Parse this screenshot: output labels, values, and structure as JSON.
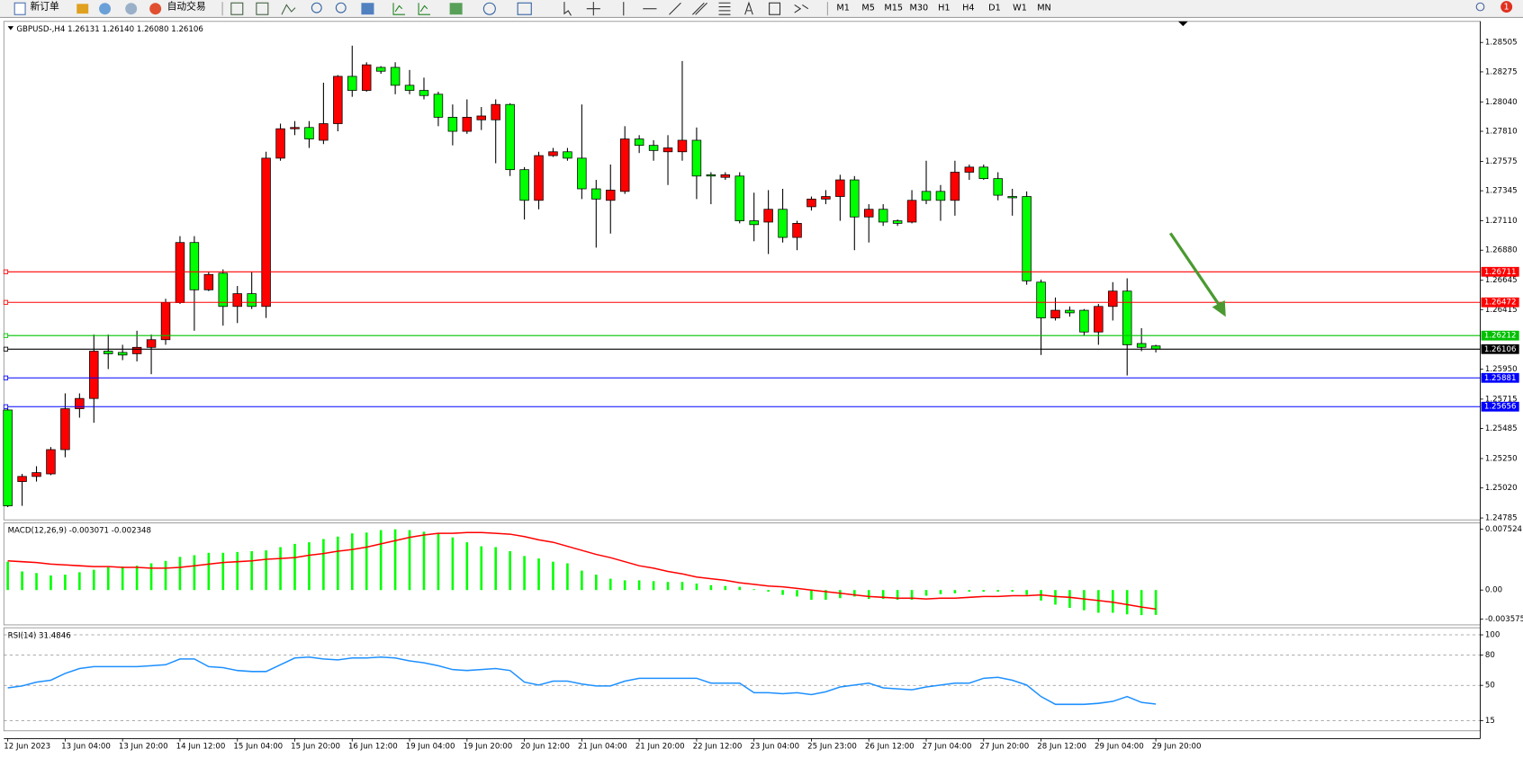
{
  "toolbar": {
    "buttons": [
      "新订单",
      "自动交易"
    ],
    "timeframes": [
      "M1",
      "M5",
      "M15",
      "M30",
      "H1",
      "H4",
      "D1",
      "W1",
      "MN"
    ],
    "badge": "1"
  },
  "chart_data": [
    {
      "type": "candlestick",
      "title": "GBPUSD-,H4  1.26131 1.26140 1.26080 1.26106",
      "up_color": "#ff0000",
      "down_color": "#00ff00",
      "categories": [
        "12 Jun 2023",
        null,
        null,
        null,
        "13 Jun 04:00",
        null,
        null,
        null,
        "13 Jun 20:00",
        null,
        null,
        null,
        "14 Jun 12:00",
        null,
        null,
        null,
        "15 Jun 04:00",
        null,
        null,
        null,
        "15 Jun 20:00",
        null,
        null,
        null,
        "16 Jun 12:00",
        null,
        null,
        null,
        "19 Jun 04:00",
        null,
        null,
        null,
        "19 Jun 20:00",
        null,
        null,
        null,
        "20 Jun 12:00",
        null,
        null,
        null,
        "21 Jun 04:00",
        null,
        null,
        null,
        "21 Jun 20:00",
        null,
        null,
        null,
        "22 Jun 12:00",
        null,
        null,
        null,
        "23 Jun 04:00",
        null,
        null,
        null,
        "25 Jun 23:00",
        null,
        null,
        null,
        "26 Jun 12:00",
        null,
        null,
        null,
        "27 Jun 04:00",
        null,
        null,
        null,
        "27 Jun 20:00",
        null,
        null,
        null,
        "28 Jun 12:00",
        null,
        null,
        null,
        "29 Jun 04:00",
        null,
        null,
        null,
        "29 Jun 20:00"
      ],
      "open": [
        1.2563,
        1.2507,
        1.2511,
        1.2513,
        1.2532,
        1.2564,
        1.2572,
        1.2609,
        1.2608,
        1.2607,
        1.2612,
        1.2618,
        1.2647,
        1.2694,
        1.2657,
        1.267,
        1.2644,
        1.2654,
        1.2644,
        1.276,
        1.2783,
        1.2784,
        1.2774,
        1.2787,
        1.2824,
        1.2813,
        1.2831,
        1.2831,
        1.2817,
        1.2813,
        1.281,
        1.2792,
        1.2781,
        1.279,
        1.279,
        1.2802,
        1.2751,
        1.2727,
        1.2762,
        1.2765,
        1.276,
        1.2736,
        1.2727,
        1.2734,
        1.2775,
        1.277,
        1.2765,
        1.2765,
        1.2774,
        1.2747,
        1.2745,
        1.2746,
        1.2711,
        1.271,
        1.272,
        1.2698,
        1.2722,
        1.2728,
        1.273,
        1.2743,
        1.2714,
        1.272,
        1.2711,
        1.271,
        1.2734,
        1.2734,
        1.2727,
        1.2749,
        1.2753,
        1.2744,
        1.273,
        1.273,
        1.2663,
        1.2635,
        1.2641,
        1.2641,
        1.2624,
        1.2644,
        1.2656,
        1.2615,
        1.26131
      ],
      "high": [
        1.2564,
        1.2513,
        1.2519,
        1.2534,
        1.2576,
        1.2576,
        1.2622,
        1.2622,
        1.2614,
        1.2625,
        1.2622,
        1.265,
        1.2699,
        1.2699,
        1.2671,
        1.2673,
        1.266,
        1.2671,
        1.2765,
        1.2787,
        1.2789,
        1.2789,
        1.2819,
        1.2825,
        1.2848,
        1.2835,
        1.2832,
        1.2835,
        1.2829,
        1.2823,
        1.2812,
        1.2802,
        1.2806,
        1.28,
        1.2806,
        1.2803,
        1.2753,
        1.2765,
        1.2768,
        1.2768,
        1.2802,
        1.2743,
        1.2755,
        1.2785,
        1.2778,
        1.2774,
        1.2778,
        1.2836,
        1.2784,
        1.2749,
        1.2749,
        1.2749,
        1.2733,
        1.2735,
        1.2736,
        1.2711,
        1.273,
        1.2735,
        1.2747,
        1.2746,
        1.2724,
        1.2724,
        1.2712,
        1.2735,
        1.2758,
        1.2739,
        1.2758,
        1.2755,
        1.2755,
        1.2749,
        1.2736,
        1.2734,
        1.2665,
        1.2651,
        1.2644,
        1.2642,
        1.2646,
        1.2663,
        1.2666,
        1.2627,
        1.2614
      ],
      "low": [
        1.2487,
        1.2488,
        1.2507,
        1.2512,
        1.2526,
        1.2557,
        1.2553,
        1.2595,
        1.2602,
        1.2601,
        1.2591,
        1.2614,
        1.2646,
        1.2625,
        1.2656,
        1.2629,
        1.2631,
        1.2642,
        1.2635,
        1.2758,
        1.2778,
        1.2768,
        1.2771,
        1.2781,
        1.2808,
        1.2812,
        1.2826,
        1.281,
        1.281,
        1.2806,
        1.2785,
        1.277,
        1.2779,
        1.2782,
        1.2756,
        1.2746,
        1.2712,
        1.272,
        1.2761,
        1.2758,
        1.2728,
        1.269,
        1.2701,
        1.2732,
        1.2764,
        1.2758,
        1.2739,
        1.2758,
        1.2728,
        1.2724,
        1.2743,
        1.2709,
        1.2695,
        1.2685,
        1.2694,
        1.2688,
        1.2719,
        1.2724,
        1.2711,
        1.2688,
        1.2694,
        1.2707,
        1.2707,
        1.2709,
        1.2724,
        1.2711,
        1.2715,
        1.2743,
        1.2743,
        1.2727,
        1.2715,
        1.2661,
        1.2606,
        1.2633,
        1.2636,
        1.2621,
        1.2614,
        1.2633,
        1.259,
        1.2609,
        1.2608
      ],
      "close": [
        1.2488,
        1.2511,
        1.2514,
        1.2532,
        1.2564,
        1.2572,
        1.2609,
        1.2607,
        1.2606,
        1.2612,
        1.2618,
        1.2647,
        1.2694,
        1.2657,
        1.2669,
        1.2644,
        1.2654,
        1.2644,
        1.276,
        1.2783,
        1.2784,
        1.2775,
        1.2787,
        1.2824,
        1.2813,
        1.2833,
        1.2828,
        1.2817,
        1.2813,
        1.2809,
        1.2792,
        1.2781,
        1.2792,
        1.2793,
        1.2802,
        1.2751,
        1.2727,
        1.2762,
        1.2765,
        1.276,
        1.2736,
        1.2728,
        1.2735,
        1.2775,
        1.277,
        1.2766,
        1.2768,
        1.2774,
        1.2746,
        1.2746,
        1.2747,
        1.2711,
        1.2708,
        1.272,
        1.2698,
        1.2709,
        1.2728,
        1.273,
        1.2743,
        1.2714,
        1.272,
        1.271,
        1.2709,
        1.2727,
        1.2727,
        1.2727,
        1.2749,
        1.2753,
        1.2744,
        1.2731,
        1.2729,
        1.2664,
        1.2635,
        1.2641,
        1.2639,
        1.2624,
        1.2644,
        1.2656,
        1.2614,
        1.2612,
        1.26106
      ],
      "ylim": [
        1.2477,
        1.2867
      ],
      "yticks": [
        1.28505,
        1.28275,
        {
          "value": 1.2804,
          "label": "1.28040"
        },
        {
          "value": 1.2781,
          "label": "1.27810"
        },
        1.27575,
        1.27345,
        {
          "value": 1.2711,
          "label": "1.27110"
        },
        {
          "value": 1.2688,
          "label": "1.26880"
        },
        1.26645,
        1.26415,
        {
          "value": 1.2595,
          "label": "1.25950"
        },
        1.25715,
        1.25485,
        {
          "value": 1.2525,
          "label": "1.25250"
        },
        {
          "value": 1.2502,
          "label": "1.25020"
        },
        1.24785
      ],
      "hlines": [
        {
          "value": 1.26711,
          "color": "#ff0000"
        },
        {
          "value": 1.26472,
          "color": "#ff0000"
        },
        {
          "value": 1.26212,
          "color": "#00c000"
        },
        {
          "value": 1.26106,
          "color": "#000000"
        },
        {
          "value": 1.25881,
          "color": "#0000ff"
        },
        {
          "value": 1.25656,
          "color": "#0000ff"
        }
      ],
      "grid": false
    },
    {
      "type": "bar",
      "title": "MACD(12,26,9) -0.003071 -0.002348",
      "series": [
        {
          "type": "bar",
          "color": "#00ff00",
          "values": [
            0.0035,
            0.0023,
            0.0021,
            0.0018,
            0.0019,
            0.0022,
            0.0025,
            0.0028,
            0.0029,
            0.003,
            0.0033,
            0.0036,
            0.0041,
            0.0043,
            0.0046,
            0.0046,
            0.0047,
            0.0048,
            0.0049,
            0.0053,
            0.0057,
            0.0059,
            0.0063,
            0.0066,
            0.007,
            0.0071,
            0.0074,
            0.0075,
            0.0074,
            0.0072,
            0.007,
            0.0065,
            0.0059,
            0.0054,
            0.0053,
            0.0048,
            0.0042,
            0.0039,
            0.0035,
            0.0033,
            0.0024,
            0.0019,
            0.0014,
            0.0012,
            0.0012,
            0.0011,
            0.001,
            0.001,
            0.0008,
            0.0006,
            0.0005,
            0.0004,
            0.0001,
            -0.0002,
            -0.0006,
            -0.0008,
            -0.0012,
            -0.0012,
            -0.001,
            -0.0008,
            -0.0011,
            -0.0011,
            -0.0012,
            -0.0012,
            -0.0007,
            -0.0005,
            -0.0004,
            -0.0002,
            -0.0002,
            -0.0002,
            -0.0002,
            -0.0006,
            -0.0013,
            -0.0018,
            -0.0022,
            -0.0025,
            -0.0028,
            -0.0028,
            -0.003,
            -0.0031,
            -0.003071
          ]
        },
        {
          "type": "line",
          "color": "#ff0000",
          "values": [
            0.0036,
            0.0035,
            0.0034,
            0.0032,
            0.0031,
            0.003,
            0.0029,
            0.0029,
            0.0028,
            0.0028,
            0.0027,
            0.0027,
            0.0028,
            0.003,
            0.0032,
            0.0034,
            0.0035,
            0.0036,
            0.0038,
            0.0039,
            0.004,
            0.0043,
            0.0045,
            0.0048,
            0.005,
            0.0053,
            0.0057,
            0.0061,
            0.0065,
            0.0068,
            0.007,
            0.007,
            0.0071,
            0.0071,
            0.007,
            0.0069,
            0.0066,
            0.0062,
            0.0059,
            0.0054,
            0.0049,
            0.0044,
            0.004,
            0.0035,
            0.003,
            0.0027,
            0.0023,
            0.002,
            0.0016,
            0.0014,
            0.0012,
            0.0009,
            0.0007,
            0.0005,
            0.0004,
            0.0002,
            0,
            -0.0002,
            -0.0004,
            -0.0006,
            -0.0008,
            -0.0009,
            -0.001,
            -0.001,
            -0.0011,
            -0.001,
            -0.001,
            -0.0009,
            -0.0008,
            -0.0008,
            -0.0007,
            -0.0007,
            -0.0006,
            -0.0008,
            -0.0009,
            -0.0011,
            -0.0013,
            -0.0015,
            -0.0018,
            -0.0021,
            -0.002348
          ]
        }
      ],
      "ylim": [
        -0.0043,
        0.0083
      ],
      "yticks": [
        0.007524,
        {
          "value": 0,
          "label": "0.00"
        },
        -0.003575
      ],
      "grid": false
    },
    {
      "type": "line",
      "title": "RSI(14) 31.4846",
      "series": [
        {
          "type": "line",
          "color": "#1e90ff",
          "values": [
            47.5,
            49.4,
            53.2,
            55.1,
            61.8,
            66.6,
            68.5,
            68.5,
            68.5,
            68.5,
            69.4,
            70.4,
            76.1,
            76.1,
            68.5,
            67.5,
            64.7,
            63.7,
            63.7,
            70.4,
            77.1,
            78.0,
            76.1,
            75.2,
            77.1,
            77.1,
            78.0,
            77.1,
            74.2,
            72.3,
            69.4,
            65.6,
            64.7,
            65.6,
            66.6,
            64.7,
            53.2,
            50.3,
            54.2,
            54.2,
            51.3,
            49.4,
            49.4,
            54.2,
            57.0,
            57.0,
            57.0,
            57.0,
            57.0,
            52.2,
            52.2,
            52.2,
            42.7,
            42.7,
            41.7,
            42.7,
            40.8,
            43.6,
            48.4,
            50.3,
            52.2,
            47.5,
            46.5,
            45.6,
            48.4,
            50.3,
            52.2,
            52.2,
            57.0,
            58.0,
            55.1,
            50.3,
            38.9,
            31.2,
            31.2,
            31.2,
            32.2,
            34.1,
            38.9,
            33.1,
            31.4846
          ]
        }
      ],
      "ylim": [
        5,
        107
      ],
      "yticks": [
        100,
        80,
        50,
        15
      ],
      "grid": true
    }
  ]
}
